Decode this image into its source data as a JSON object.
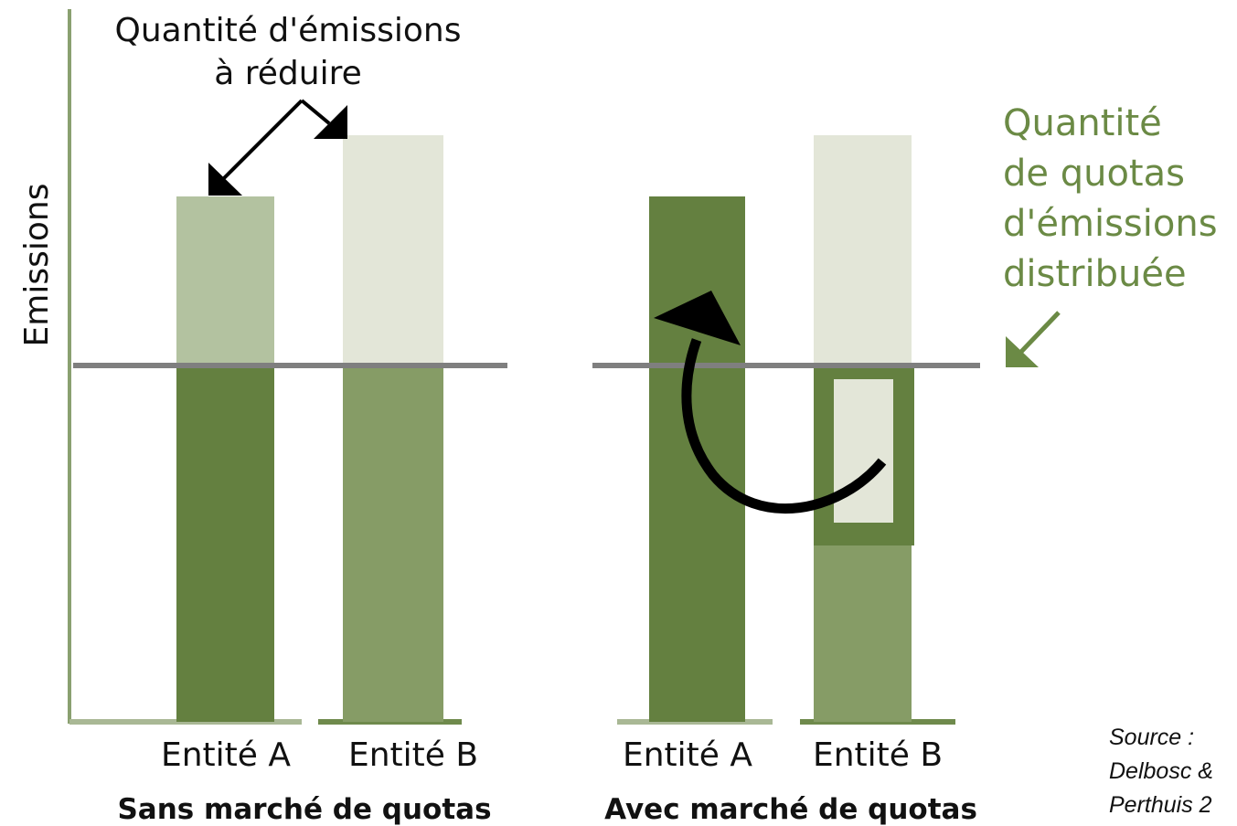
{
  "y_axis_label": "Emissions",
  "annotation_reduce": [
    "Quantité d'émissions",
    "à réduire"
  ],
  "annotation_quotas": [
    "Quantité",
    "de quotas",
    "d'émissions",
    "distribuée"
  ],
  "panels": [
    {
      "title": "Sans marché de quotas",
      "entities": [
        "Entité A",
        "Entité B"
      ]
    },
    {
      "title": "Avec marché de quotas",
      "entities": [
        "Entité A",
        "Entité B"
      ]
    }
  ],
  "source": [
    "Source :",
    "Delbosc &",
    "Perthuis 2"
  ]
}
